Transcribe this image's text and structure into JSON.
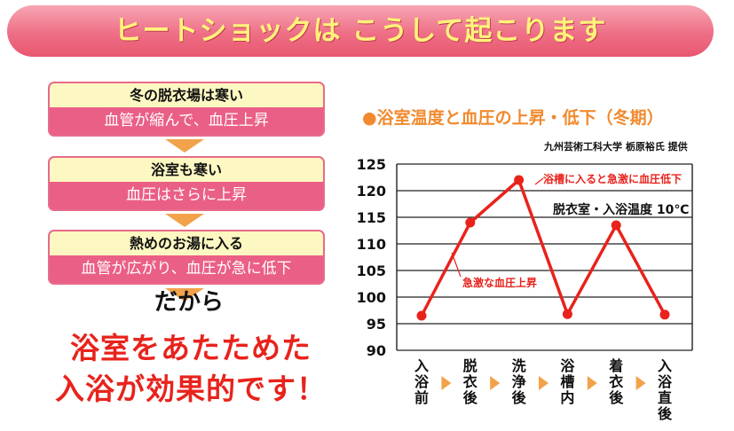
{
  "banner": {
    "title": "ヒートショックは こうして起こります"
  },
  "steps": [
    {
      "head": "冬の脱衣場は寒い",
      "body": "血管が縮んで、血圧上昇"
    },
    {
      "head": "浴室も寒い",
      "body": "血圧はさらに上昇"
    },
    {
      "head": "熱めのお湯に入る",
      "body": "血管が広がり、血圧が急に低下"
    }
  ],
  "conclusion": {
    "dakara": "だから",
    "line1": "浴室をあたためた",
    "line2": "入浴が効果的です！"
  },
  "chart_header": {
    "title": "●浴室温度と血圧の上昇・低下（冬期）",
    "credit": "九州芸術工科大学 栃原裕氏 提供"
  },
  "colors": {
    "line": "#e8231c",
    "banner": "#ee6f86",
    "step_body": "#ea5f86",
    "arrow": "#f2a24a"
  },
  "chart_data": {
    "type": "line",
    "title": "浴室温度と血圧の上昇・低下（冬期）",
    "categories": [
      "入浴前",
      "脱衣後",
      "洗浄後",
      "浴槽内",
      "着衣後",
      "入浴直後"
    ],
    "series": [
      {
        "values": [
          96.5,
          114,
          122,
          96.8,
          113.5,
          96.7
        ]
      }
    ],
    "ylim": [
      90,
      125
    ],
    "yticks": [
      90,
      95,
      100,
      105,
      110,
      115,
      120,
      125
    ],
    "grid": true,
    "annotations": [
      {
        "text": "浴槽に入ると急激に血圧低下"
      },
      {
        "text": "脱衣室・入浴温度 10℃"
      },
      {
        "text": "急激な血圧上昇"
      }
    ]
  }
}
